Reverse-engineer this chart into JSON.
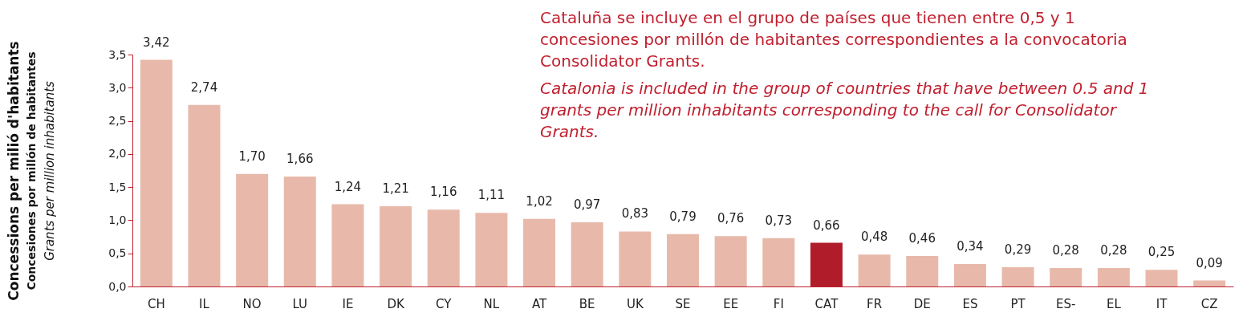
{
  "chart_data": {
    "type": "bar",
    "ylabel": "Concessions per milió d'habitants\nConcesiones por millón de habitantes\nGrants per million inhabitants",
    "categories": [
      "CH",
      "IL",
      "NO",
      "LU",
      "IE",
      "DK",
      "CY",
      "NL",
      "AT",
      "BE",
      "UK",
      "SE",
      "EE",
      "FI",
      "CAT",
      "FR",
      "DE",
      "ES",
      "PT",
      "ES-",
      "EL",
      "IT",
      "CZ"
    ],
    "values": [
      3.42,
      2.74,
      1.7,
      1.66,
      1.24,
      1.21,
      1.16,
      1.11,
      1.02,
      0.97,
      0.83,
      0.79,
      0.76,
      0.73,
      0.66,
      0.48,
      0.46,
      0.34,
      0.29,
      0.28,
      0.28,
      0.25,
      0.09
    ],
    "value_labels": [
      "3,42",
      "2,74",
      "1,70",
      "1,66",
      "1,24",
      "1,21",
      "1,16",
      "1,11",
      "1,02",
      "0,97",
      "0,83",
      "0,79",
      "0,76",
      "0,73",
      "0,66",
      "0,48",
      "0,46",
      "0,34",
      "0,29",
      "0,28",
      "0,28",
      "0,25",
      "0,09"
    ],
    "colors": [
      "#e8b9aa",
      "#e8b9aa",
      "#e8b9aa",
      "#e8b9aa",
      "#e8b9aa",
      "#e8b9aa",
      "#e8b9aa",
      "#e8b9aa",
      "#e8b9aa",
      "#e8b9aa",
      "#e8b9aa",
      "#e8b9aa",
      "#e8b9aa",
      "#e8b9aa",
      "#b01c2a",
      "#e8b9aa",
      "#e8b9aa",
      "#e8b9aa",
      "#e8b9aa",
      "#e8b9aa",
      "#e8b9aa",
      "#e8b9aa",
      "#e8b9aa"
    ],
    "ylim": [
      0,
      3.5
    ],
    "yticks": [
      {
        "value": 0,
        "label": "0,0"
      },
      {
        "value": 0.5,
        "label": "0,5"
      },
      {
        "value": 1,
        "label": "1,0"
      },
      {
        "value": 1.5,
        "label": "1,5"
      },
      {
        "value": 2,
        "label": "2,0"
      },
      {
        "value": 2.5,
        "label": "2,5"
      },
      {
        "value": 3,
        "label": "3,0"
      },
      {
        "value": 3.5,
        "label": "3,5"
      }
    ],
    "grid": false,
    "annotations": [
      "Cataluña se incluye en el grupo de países que tienen entre 0,5 y 1 concesiones por millón de habitantes correspondientes a la convocatoria Consolidator Grants.",
      "Catalonia is included in the group of countries that have between 0.5 and 1 grants per million inhabitants corresponding to the call for Consolidator Grants."
    ]
  }
}
